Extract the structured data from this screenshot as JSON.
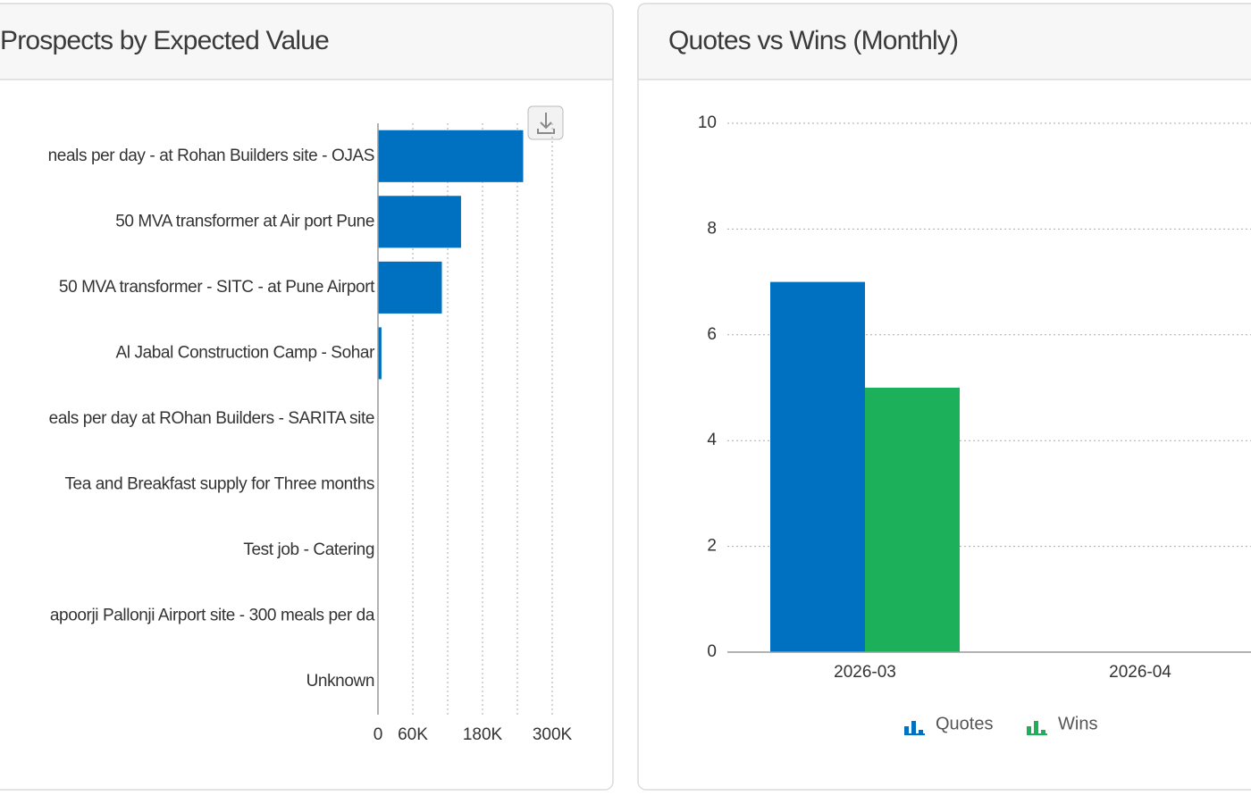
{
  "chart_data": [
    {
      "type": "hbar",
      "title": "Prospects by Expected Value",
      "categories": [
        "neals per day - at Rohan Builders site - OJAS",
        "50 MVA transformer at Air port Pune",
        "50 MVA transformer - SITC - at Pune Airport",
        "Al Jabal Construction Camp - Sohar",
        "eals per day at ROhan Builders - SARITA site",
        "Tea and Breakfast supply for Three months",
        "Test job - Catering",
        "apoorji Pallonji Airport site - 300 meals per da",
        "Unknown"
      ],
      "values": [
        250000,
        143000,
        110000,
        6000,
        0,
        0,
        0,
        0,
        0
      ],
      "color": "#0070c0",
      "xlim": [
        0,
        300000
      ],
      "xticks": [
        0,
        {
          "value": 60000,
          "label": "60K"
        },
        {
          "value": 120000,
          "label": null
        },
        {
          "value": 180000,
          "label": "180K"
        },
        {
          "value": 240000,
          "label": null
        },
        {
          "value": 300000,
          "label": "300K"
        }
      ],
      "grid": true
    },
    {
      "type": "bar",
      "title": "Quotes vs Wins (Monthly)",
      "categories": [
        "2026-03",
        "2026-04"
      ],
      "series": [
        {
          "name": "Quotes",
          "color": "#0070c0",
          "values": [
            7,
            0
          ]
        },
        {
          "name": "Wins",
          "color": "#1db05b",
          "values": [
            5,
            0
          ]
        }
      ],
      "ylim": [
        0,
        10
      ],
      "yticks": [
        0,
        2,
        4,
        6,
        8,
        10
      ],
      "grid": true,
      "legend": "bottom"
    }
  ]
}
